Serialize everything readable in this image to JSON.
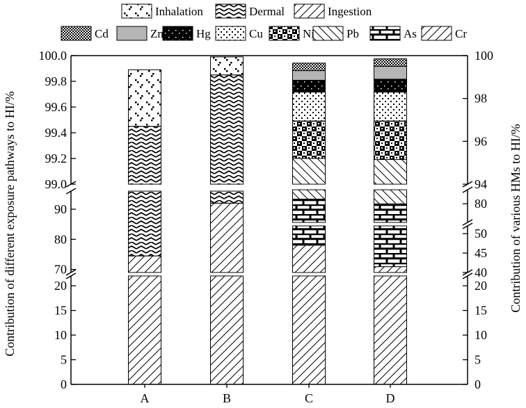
{
  "chart_data": {
    "type": "bar",
    "stacked": true,
    "broken_axes": true,
    "categories": [
      "A",
      "B",
      "C",
      "D"
    ],
    "left_axis": {
      "label": "Contribution of different exposure pathways to HI/%",
      "segments": [
        {
          "range": [
            0,
            22
          ],
          "ticks": [
            "0",
            "5",
            "10",
            "15",
            "20"
          ]
        },
        {
          "range": [
            69,
            96
          ],
          "ticks": [
            "70",
            "80",
            "90"
          ]
        },
        {
          "range": [
            99.0,
            100.0
          ],
          "ticks": [
            "99.0",
            "99.2",
            "99.4",
            "99.6",
            "99.8",
            "100.0"
          ]
        }
      ]
    },
    "right_axis": {
      "label": "Contribution of various HMs to HI/%",
      "segments": [
        {
          "range": [
            0,
            22
          ],
          "ticks": [
            "0",
            "5",
            "10",
            "15",
            "20"
          ]
        },
        {
          "range": [
            40,
            52
          ],
          "ticks": [
            "40",
            "45",
            "50"
          ]
        },
        {
          "range": [
            76,
            83
          ],
          "ticks": [
            "80"
          ]
        },
        {
          "range": [
            94,
            100
          ],
          "ticks": [
            "94",
            "96",
            "98",
            "100"
          ]
        }
      ]
    },
    "legend_pathways": [
      "Inhalation",
      "Dermal",
      "Ingestion"
    ],
    "legend_metals": [
      "Cd",
      "Zn",
      "Hg",
      "Cu",
      "Ni",
      "Pb",
      "As",
      "Cr"
    ],
    "pathway_series": [
      {
        "name": "Ingestion",
        "values": [
          74.5,
          92.0
        ]
      },
      {
        "name": "Dermal",
        "values": [
          24.95,
          7.85
        ]
      },
      {
        "name": "Inhalation",
        "values": [
          0.44,
          0.14
        ]
      }
    ],
    "metal_series": [
      {
        "name": "Cr",
        "values": [
          47.0,
          41.5
        ]
      },
      {
        "name": "As",
        "values": [
          34.0,
          38.5
        ]
      },
      {
        "name": "Pb",
        "values": [
          14.2,
          15.15
        ]
      },
      {
        "name": "Ni",
        "values": [
          1.75,
          1.8
        ]
      },
      {
        "name": "Cu",
        "values": [
          1.35,
          1.35
        ]
      },
      {
        "name": "Hg",
        "values": [
          0.55,
          0.6
        ]
      },
      {
        "name": "Zn",
        "values": [
          0.45,
          0.6
        ]
      },
      {
        "name": "Cd",
        "values": [
          0.35,
          0.35
        ]
      }
    ]
  }
}
